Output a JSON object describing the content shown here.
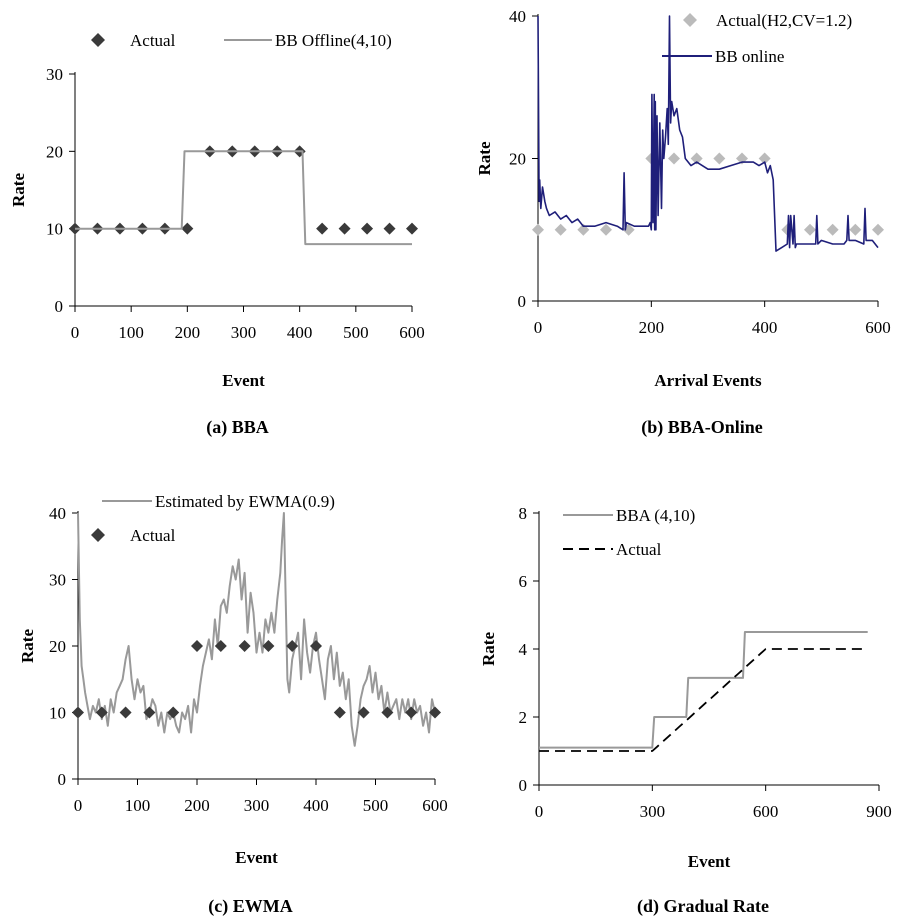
{
  "chart_data": [
    {
      "type": "line",
      "caption": "(a)  BBA",
      "xlabel": "Event",
      "ylabel": "Rate",
      "xlim": [
        0,
        600
      ],
      "ylim": [
        0,
        30
      ],
      "xticks": [
        0,
        100,
        200,
        300,
        400,
        500,
        600
      ],
      "yticks": [
        0,
        10,
        20,
        30
      ],
      "xtick_labels": [
        "0",
        "100",
        "200",
        "300",
        "400",
        "500",
        "600"
      ],
      "ytick_labels": [
        "0",
        "10",
        "20",
        "30"
      ],
      "grid": false,
      "legend_position": "top",
      "series": [
        {
          "name": "Actual",
          "style": "markers-diamond",
          "color": "#3a3a3a",
          "x": [
            0,
            40,
            80,
            120,
            160,
            200,
            240,
            280,
            320,
            360,
            400,
            440,
            480,
            520,
            560,
            600
          ],
          "y": [
            10,
            10,
            10,
            10,
            10,
            10,
            20,
            20,
            20,
            20,
            20,
            10,
            10,
            10,
            10,
            10
          ]
        },
        {
          "name": "BB Offline(4,10)",
          "style": "line",
          "color": "#999999",
          "x": [
            0,
            190,
            195,
            405,
            410,
            600
          ],
          "y": [
            10,
            10,
            20,
            20,
            8,
            8
          ]
        }
      ]
    },
    {
      "type": "line",
      "caption": "(b)  BBA-Online",
      "xlabel": "Arrival Events",
      "ylabel": "Rate",
      "xlim": [
        0,
        600
      ],
      "ylim": [
        0,
        40
      ],
      "xticks": [
        0,
        200,
        400,
        600
      ],
      "yticks": [
        0,
        20,
        40
      ],
      "xtick_labels": [
        "0",
        "200",
        "400",
        "600"
      ],
      "ytick_labels": [
        "0",
        "20",
        "40"
      ],
      "grid": false,
      "legend_position": "top-right",
      "series": [
        {
          "name": "Actual(H2,CV=1.2)",
          "style": "markers-diamond",
          "color": "#bbbbbb",
          "x": [
            0,
            40,
            80,
            120,
            160,
            200,
            240,
            280,
            320,
            360,
            400,
            440,
            480,
            520,
            560,
            600
          ],
          "y": [
            10,
            10,
            10,
            10,
            10,
            20,
            20,
            20,
            20,
            20,
            20,
            10,
            10,
            10,
            10,
            10
          ]
        },
        {
          "name": "BB online",
          "style": "line",
          "color": "#1f1f7a",
          "x": [
            0,
            2,
            3,
            5,
            8,
            12,
            15,
            20,
            30,
            40,
            50,
            60,
            70,
            80,
            100,
            120,
            140,
            150,
            152,
            154,
            156,
            170,
            195,
            198,
            200,
            201,
            203,
            205,
            206,
            207,
            208,
            210,
            212,
            215,
            218,
            220,
            222,
            225,
            228,
            230,
            232,
            234,
            236,
            240,
            245,
            250,
            255,
            260,
            270,
            280,
            300,
            320,
            340,
            360,
            380,
            390,
            400,
            405,
            410,
            415,
            420,
            430,
            440,
            442,
            444,
            446,
            450,
            452,
            454,
            456,
            460,
            480,
            490,
            492,
            494,
            500,
            520,
            540,
            545,
            547,
            549,
            560,
            575,
            577,
            579,
            590,
            600
          ],
          "y": [
            40,
            14,
            17,
            13,
            16,
            14,
            13,
            12,
            12.5,
            11.5,
            12,
            11,
            11.5,
            10.5,
            10.5,
            11,
            10.5,
            10,
            18,
            10,
            11,
            10.5,
            10.5,
            11,
            10,
            29,
            11,
            29,
            10,
            28,
            10,
            26,
            12,
            25,
            13,
            24,
            20,
            23,
            27,
            22,
            40,
            25,
            28,
            26,
            27,
            24,
            23,
            20,
            19,
            19.5,
            18.5,
            18.5,
            19,
            19.5,
            19.5,
            19,
            19.5,
            18,
            19,
            17,
            7,
            7.5,
            8,
            12,
            7.5,
            12,
            8,
            12,
            7.5,
            8,
            8,
            8,
            8,
            12,
            8,
            8.5,
            8,
            8,
            8.5,
            12,
            8.5,
            8.5,
            8,
            13,
            8.5,
            8.5,
            7.5
          ]
        }
      ]
    },
    {
      "type": "line",
      "caption": "(c)  EWMA",
      "xlabel": "Event",
      "ylabel": "Rate",
      "xlim": [
        0,
        600
      ],
      "ylim": [
        0,
        40
      ],
      "xticks": [
        0,
        100,
        200,
        300,
        400,
        500,
        600
      ],
      "yticks": [
        0,
        10,
        20,
        30,
        40
      ],
      "xtick_labels": [
        "0",
        "100",
        "200",
        "300",
        "400",
        "500",
        "600"
      ],
      "ytick_labels": [
        "0",
        "10",
        "20",
        "30",
        "40"
      ],
      "grid": false,
      "legend_position": "top",
      "series": [
        {
          "name": "Estimated by EWMA(0.9)",
          "style": "line",
          "color": "#999999",
          "x": [
            0,
            3,
            6,
            9,
            12,
            16,
            20,
            25,
            30,
            35,
            40,
            45,
            50,
            55,
            60,
            65,
            70,
            75,
            80,
            85,
            90,
            95,
            100,
            105,
            110,
            115,
            120,
            125,
            130,
            135,
            140,
            145,
            150,
            155,
            160,
            165,
            170,
            175,
            180,
            185,
            190,
            195,
            200,
            205,
            210,
            215,
            220,
            225,
            230,
            235,
            240,
            245,
            250,
            255,
            260,
            265,
            270,
            275,
            280,
            285,
            290,
            295,
            300,
            305,
            310,
            315,
            320,
            325,
            330,
            335,
            340,
            343,
            346,
            349,
            352,
            355,
            360,
            365,
            370,
            375,
            380,
            385,
            390,
            395,
            400,
            405,
            410,
            415,
            420,
            425,
            430,
            435,
            440,
            445,
            450,
            455,
            460,
            465,
            470,
            475,
            480,
            485,
            490,
            495,
            500,
            505,
            510,
            515,
            520,
            525,
            530,
            535,
            540,
            545,
            550,
            555,
            560,
            565,
            570,
            575,
            580,
            585,
            590,
            595,
            600
          ],
          "y": [
            40,
            24,
            17,
            15,
            13,
            11,
            9,
            11,
            10,
            12,
            9,
            11,
            8,
            12,
            10,
            13,
            14,
            15,
            18,
            20,
            15,
            12,
            15,
            13,
            14,
            9,
            10,
            12,
            11,
            8,
            10,
            7,
            10,
            9,
            10,
            8,
            7,
            10,
            9,
            11,
            7,
            12,
            10,
            14,
            17,
            19,
            21,
            18,
            24,
            20,
            26,
            27,
            25,
            29,
            32,
            30,
            33,
            27,
            31,
            22,
            28,
            25,
            19,
            22,
            19,
            24,
            22,
            25,
            22,
            27,
            31,
            36,
            40,
            27,
            15,
            13,
            18,
            20,
            22,
            15,
            24,
            19,
            16,
            20,
            22,
            18,
            15,
            12,
            18,
            20,
            15,
            19,
            14,
            16,
            12,
            15,
            8,
            5,
            8,
            12,
            14,
            15,
            17,
            13,
            16,
            12,
            14,
            10,
            13,
            10,
            11,
            12,
            9,
            12,
            10,
            12,
            9,
            12,
            10,
            11,
            8,
            10,
            7,
            12,
            10
          ]
        },
        {
          "name": "Actual",
          "style": "markers-diamond",
          "color": "#3a3a3a",
          "x": [
            0,
            40,
            80,
            120,
            160,
            200,
            240,
            280,
            320,
            360,
            400,
            440,
            480,
            520,
            560,
            600
          ],
          "y": [
            10,
            10,
            10,
            10,
            10,
            20,
            20,
            20,
            20,
            20,
            20,
            10,
            10,
            10,
            10,
            10
          ]
        }
      ]
    },
    {
      "type": "line",
      "caption": "(d)  Gradual Rate",
      "xlabel": "Event",
      "ylabel": "Rate",
      "xlim": [
        0,
        900
      ],
      "ylim": [
        0,
        8
      ],
      "xticks": [
        0,
        300,
        600,
        900
      ],
      "yticks": [
        0,
        2,
        4,
        6,
        8
      ],
      "xtick_labels": [
        "0",
        "300",
        "600",
        "900"
      ],
      "ytick_labels": [
        "0",
        "2",
        "4",
        "6",
        "8"
      ],
      "grid": false,
      "legend_position": "top-left",
      "series": [
        {
          "name": "BBA (4,10)",
          "style": "line",
          "color": "#999999",
          "x": [
            0,
            300,
            305,
            390,
            395,
            540,
            545,
            870
          ],
          "y": [
            1.1,
            1.1,
            2.0,
            2.0,
            3.15,
            3.15,
            4.5,
            4.5
          ]
        },
        {
          "name": "Actual",
          "style": "dashed",
          "color": "#000000",
          "x": [
            0,
            300,
            312,
            324,
            336,
            348,
            360,
            372,
            384,
            396,
            408,
            420,
            432,
            444,
            456,
            468,
            480,
            492,
            504,
            516,
            528,
            540,
            552,
            564,
            576,
            588,
            600,
            870
          ],
          "y": [
            1.0,
            1.0,
            1.12,
            1.24,
            1.36,
            1.48,
            1.6,
            1.72,
            1.84,
            1.96,
            2.08,
            2.2,
            2.32,
            2.44,
            2.56,
            2.68,
            2.8,
            2.92,
            3.04,
            3.16,
            3.28,
            3.4,
            3.52,
            3.64,
            3.76,
            3.88,
            4.0,
            4.0
          ]
        }
      ]
    }
  ]
}
